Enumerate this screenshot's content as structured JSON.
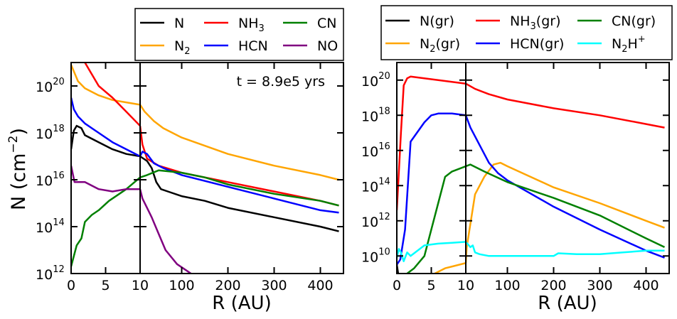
{
  "figure": {
    "ylabel_main": "N (cm",
    "ylabel_exp": "−2",
    "ylabel_close": ")"
  },
  "chart_data": [
    {
      "type": "line",
      "panel": "left",
      "annotation": "t = 8.9e5 yrs",
      "xlabel": "R (AU)",
      "yscale": "log",
      "ylim_log10": [
        12,
        21
      ],
      "inner_segment": {
        "xlim": [
          0,
          10
        ],
        "xticks": [
          "0",
          "5",
          "10"
        ]
      },
      "outer_segment": {
        "xlim": [
          10,
          450
        ],
        "xticks": [
          "100",
          "200",
          "300",
          "400"
        ]
      },
      "yticks": [
        {
          "base": "10",
          "exp": "20",
          "log10": 20
        },
        {
          "base": "10",
          "exp": "18",
          "log10": 18
        },
        {
          "base": "10",
          "exp": "16",
          "log10": 16
        },
        {
          "base": "10",
          "exp": "14",
          "log10": 14
        },
        {
          "base": "10",
          "exp": "12",
          "log10": 12
        }
      ],
      "legend": {
        "placement": "above-right",
        "entries": [
          {
            "label": "N",
            "sub": "",
            "tail": "",
            "color": "#000000"
          },
          {
            "label": "NH",
            "sub": "3",
            "tail": "",
            "color": "#ff0000"
          },
          {
            "label": "CN",
            "sub": "",
            "tail": "",
            "color": "#008000"
          },
          {
            "label": "N",
            "sub": "2",
            "tail": "",
            "color": "#ffa500"
          },
          {
            "label": "HCN",
            "sub": "",
            "tail": "",
            "color": "#0000ff"
          },
          {
            "label": "NO",
            "sub": "",
            "tail": "",
            "color": "#800080"
          }
        ]
      },
      "series": [
        {
          "name": "N",
          "color": "#000000",
          "inner": [
            [
              0,
              17.3
            ],
            [
              0.4,
              18.1
            ],
            [
              0.8,
              18.3
            ],
            [
              1.5,
              18.2
            ],
            [
              2,
              17.9
            ],
            [
              4,
              17.6
            ],
            [
              6,
              17.3
            ],
            [
              8,
              17.1
            ],
            [
              10,
              17.0
            ]
          ],
          "outer": [
            [
              10,
              17.0
            ],
            [
              25,
              16.8
            ],
            [
              35,
              16.5
            ],
            [
              45,
              15.9
            ],
            [
              55,
              15.6
            ],
            [
              70,
              15.5
            ],
            [
              100,
              15.3
            ],
            [
              150,
              15.1
            ],
            [
              200,
              14.8
            ],
            [
              300,
              14.4
            ],
            [
              400,
              14.0
            ],
            [
              440,
              13.8
            ]
          ]
        },
        {
          "name": "N2",
          "color": "#ffa500",
          "inner": [
            [
              0,
              20.9
            ],
            [
              1,
              20.2
            ],
            [
              2,
              19.9
            ],
            [
              4,
              19.6
            ],
            [
              6,
              19.4
            ],
            [
              8,
              19.3
            ],
            [
              10,
              19.2
            ]
          ],
          "outer": [
            [
              10,
              19.2
            ],
            [
              20,
              18.9
            ],
            [
              40,
              18.5
            ],
            [
              60,
              18.2
            ],
            [
              100,
              17.8
            ],
            [
              200,
              17.1
            ],
            [
              300,
              16.6
            ],
            [
              400,
              16.2
            ],
            [
              440,
              16.0
            ]
          ]
        },
        {
          "name": "NH3",
          "color": "#ff0000",
          "inner": [
            [
              0,
              23
            ],
            [
              1,
              22
            ],
            [
              2,
              21.0
            ],
            [
              3,
              20.5
            ],
            [
              4,
              20.0
            ],
            [
              6,
              19.5
            ],
            [
              8,
              18.9
            ],
            [
              10,
              18.3
            ]
          ],
          "outer": [
            [
              10,
              18.3
            ],
            [
              15,
              17.5
            ],
            [
              25,
              16.9
            ],
            [
              50,
              16.6
            ],
            [
              100,
              16.3
            ],
            [
              200,
              15.9
            ],
            [
              300,
              15.5
            ],
            [
              400,
              15.1
            ],
            [
              440,
              14.9
            ]
          ]
        },
        {
          "name": "HCN",
          "color": "#0000ff",
          "inner": [
            [
              0,
              19.5
            ],
            [
              0.4,
              19.0
            ],
            [
              1,
              18.7
            ],
            [
              2,
              18.4
            ],
            [
              4,
              18.0
            ],
            [
              6,
              17.6
            ],
            [
              8,
              17.3
            ],
            [
              10,
              17.0
            ]
          ],
          "outer": [
            [
              10,
              17.0
            ],
            [
              15,
              17.2
            ],
            [
              25,
              17.1
            ],
            [
              40,
              16.7
            ],
            [
              60,
              16.5
            ],
            [
              100,
              16.2
            ],
            [
              200,
              15.7
            ],
            [
              300,
              15.2
            ],
            [
              400,
              14.7
            ],
            [
              440,
              14.6
            ]
          ]
        },
        {
          "name": "CN",
          "color": "#008000",
          "inner": [
            [
              0,
              12.3
            ],
            [
              0.8,
              13.2
            ],
            [
              1.5,
              13.5
            ],
            [
              2,
              14.2
            ],
            [
              3,
              14.5
            ],
            [
              4,
              14.7
            ],
            [
              5.5,
              15.1
            ],
            [
              7,
              15.4
            ],
            [
              8,
              15.6
            ],
            [
              10,
              16.1
            ]
          ],
          "outer": [
            [
              10,
              16.1
            ],
            [
              25,
              16.2
            ],
            [
              50,
              16.4
            ],
            [
              100,
              16.3
            ],
            [
              150,
              16.1
            ],
            [
              200,
              15.8
            ],
            [
              300,
              15.4
            ],
            [
              400,
              15.1
            ],
            [
              440,
              14.9
            ]
          ]
        },
        {
          "name": "NO",
          "color": "#800080",
          "inner": [
            [
              0,
              16.6
            ],
            [
              0.5,
              15.9
            ],
            [
              2,
              15.9
            ],
            [
              4,
              15.6
            ],
            [
              6,
              15.5
            ],
            [
              8,
              15.6
            ],
            [
              10,
              15.6
            ]
          ],
          "outer": [
            [
              10,
              15.6
            ],
            [
              15,
              15.2
            ],
            [
              25,
              14.8
            ],
            [
              35,
              14.4
            ],
            [
              50,
              13.7
            ],
            [
              65,
              13.0
            ],
            [
              90,
              12.4
            ],
            [
              120,
              12.0
            ]
          ]
        }
      ]
    },
    {
      "type": "line",
      "panel": "right",
      "annotation": "",
      "xlabel": "R (AU)",
      "yscale": "log",
      "ylim_log10": [
        9,
        21
      ],
      "inner_segment": {
        "xlim": [
          0,
          10
        ],
        "xticks": [
          "0",
          "5",
          "10"
        ]
      },
      "outer_segment": {
        "xlim": [
          10,
          450
        ],
        "xticks": [
          "100",
          "200",
          "300",
          "400"
        ]
      },
      "yticks": [
        {
          "base": "10",
          "exp": "20",
          "log10": 20
        },
        {
          "base": "10",
          "exp": "18",
          "log10": 18
        },
        {
          "base": "10",
          "exp": "16",
          "log10": 16
        },
        {
          "base": "10",
          "exp": "14",
          "log10": 14
        },
        {
          "base": "10",
          "exp": "12",
          "log10": 12
        },
        {
          "base": "10",
          "exp": "10",
          "log10": 10
        }
      ],
      "legend": {
        "placement": "above",
        "entries": [
          {
            "label": "N(gr)",
            "sub": "",
            "tail": "",
            "color": "#000000"
          },
          {
            "label": "NH",
            "sub": "3",
            "tail": "(gr)",
            "color": "#ff0000"
          },
          {
            "label": "CN(gr)",
            "sub": "",
            "tail": "",
            "color": "#008000"
          },
          {
            "label": "N",
            "sub": "2",
            "tail": "(gr)",
            "color": "#ffa500"
          },
          {
            "label": "HCN(gr)",
            "sub": "",
            "tail": "",
            "color": "#0000ff"
          },
          {
            "label": "N",
            "sub": "2",
            "tail": "H",
            "sup": "+",
            "color": "#00ffff"
          }
        ]
      },
      "series": [
        {
          "name": "N(gr)",
          "color": "#000000",
          "inner": [
            [
              0,
              9.5
            ],
            [
              0.2,
              9.0
            ]
          ],
          "outer": []
        },
        {
          "name": "N2(gr)",
          "color": "#ffa500",
          "inner": [
            [
              5.5,
              9.0
            ],
            [
              7,
              9.3
            ],
            [
              10,
              9.6
            ]
          ],
          "outer": [
            [
              10,
              9.6
            ],
            [
              12,
              10.5
            ],
            [
              30,
              13.5
            ],
            [
              50,
              14.5
            ],
            [
              70,
              15.2
            ],
            [
              85,
              15.3
            ],
            [
              100,
              15.1
            ],
            [
              200,
              13.9
            ],
            [
              300,
              13.0
            ],
            [
              400,
              12.0
            ],
            [
              440,
              11.6
            ]
          ]
        },
        {
          "name": "NH3(gr)",
          "color": "#ff0000",
          "inner": [
            [
              0,
              12.6
            ],
            [
              0.6,
              17.0
            ],
            [
              1,
              19.7
            ],
            [
              1.5,
              20.1
            ],
            [
              2,
              20.2
            ],
            [
              4,
              20.1
            ],
            [
              6,
              20.0
            ],
            [
              8,
              19.9
            ],
            [
              10,
              19.8
            ]
          ],
          "outer": [
            [
              10,
              19.8
            ],
            [
              30,
              19.5
            ],
            [
              60,
              19.2
            ],
            [
              100,
              18.9
            ],
            [
              200,
              18.4
            ],
            [
              300,
              18.0
            ],
            [
              400,
              17.5
            ],
            [
              440,
              17.3
            ]
          ]
        },
        {
          "name": "HCN(gr)",
          "color": "#0000ff",
          "inner": [
            [
              0,
              9.5
            ],
            [
              0.5,
              9.8
            ],
            [
              1.2,
              11.5
            ],
            [
              2,
              16.5
            ],
            [
              4,
              17.6
            ],
            [
              5,
              18.0
            ],
            [
              6,
              18.1
            ],
            [
              8,
              18.1
            ],
            [
              10,
              18.0
            ]
          ],
          "outer": [
            [
              10,
              18.0
            ],
            [
              20,
              17.3
            ],
            [
              40,
              16.3
            ],
            [
              60,
              15.3
            ],
            [
              80,
              14.7
            ],
            [
              100,
              14.3
            ],
            [
              200,
              12.8
            ],
            [
              300,
              11.5
            ],
            [
              400,
              10.3
            ],
            [
              440,
              9.9
            ]
          ]
        },
        {
          "name": "CN(gr)",
          "color": "#008000",
          "inner": [
            [
              1.5,
              9.0
            ],
            [
              2.5,
              9.3
            ],
            [
              4,
              10.0
            ],
            [
              5,
              11.5
            ],
            [
              6,
              13.0
            ],
            [
              7,
              14.5
            ],
            [
              8,
              14.8
            ],
            [
              10,
              15.1
            ]
          ],
          "outer": [
            [
              10,
              15.1
            ],
            [
              20,
              15.2
            ],
            [
              50,
              14.8
            ],
            [
              100,
              14.2
            ],
            [
              200,
              13.3
            ],
            [
              300,
              12.3
            ],
            [
              400,
              11.0
            ],
            [
              440,
              10.5
            ]
          ]
        },
        {
          "name": "N2H+",
          "color": "#00ffff",
          "inner": [
            [
              0,
              9.9
            ],
            [
              0.3,
              10.4
            ],
            [
              0.6,
              10.2
            ],
            [
              1,
              9.7
            ],
            [
              1.5,
              10.2
            ],
            [
              2,
              10.0
            ],
            [
              4,
              10.6
            ],
            [
              6,
              10.7
            ],
            [
              8,
              10.75
            ],
            [
              10,
              10.8
            ]
          ],
          "outer": [
            [
              10,
              10.8
            ],
            [
              20,
              10.5
            ],
            [
              25,
              10.6
            ],
            [
              30,
              10.2
            ],
            [
              40,
              10.1
            ],
            [
              60,
              10.0
            ],
            [
              100,
              10.0
            ],
            [
              200,
              10.0
            ],
            [
              210,
              10.15
            ],
            [
              250,
              10.1
            ],
            [
              300,
              10.1
            ],
            [
              350,
              10.2
            ],
            [
              400,
              10.3
            ],
            [
              440,
              10.3
            ]
          ]
        }
      ]
    }
  ]
}
